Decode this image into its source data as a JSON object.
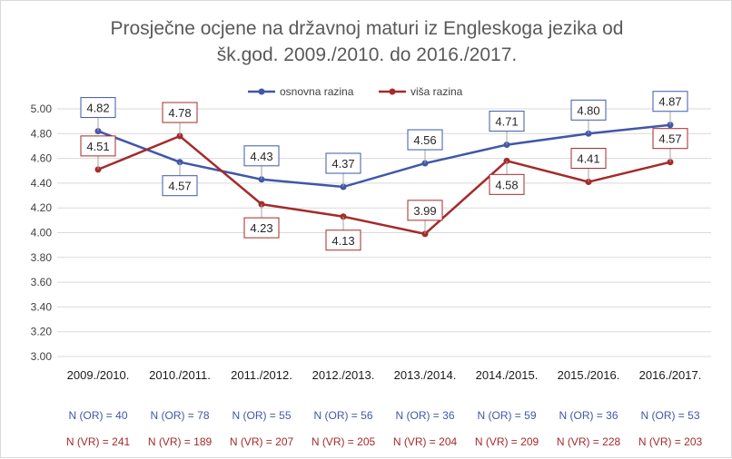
{
  "chart_data": {
    "type": "line",
    "title": "Prosječne ocjene na državnoj maturi iz Engleskoga jezika od šk.god. 2009./2010. do 2016./2017.",
    "title_lines": [
      "Prosječne ocjene na državnoj maturi iz Engleskoga jezika od",
      "šk.god. 2009./2010. do 2016./2017."
    ],
    "categories": [
      "2009./2010.",
      "2010./2011.",
      "2011./2012.",
      "2012./2013.",
      "2013./2014.",
      "2014./2015.",
      "2015./2016.",
      "2016./2017."
    ],
    "ylim": [
      3.0,
      5.0
    ],
    "yticks": [
      "3.00",
      "3.20",
      "3.40",
      "3.60",
      "3.80",
      "4.00",
      "4.20",
      "4.40",
      "4.60",
      "4.80",
      "5.00"
    ],
    "grid": true,
    "legend_position": "top",
    "series": [
      {
        "name": "osnovna razina",
        "color": "#4157a8",
        "values": [
          4.82,
          4.57,
          4.43,
          4.37,
          4.56,
          4.71,
          4.8,
          4.87
        ],
        "labels": [
          "4.82",
          "4.57",
          "4.43",
          "4.37",
          "4.56",
          "4.71",
          "4.80",
          "4.87"
        ],
        "label_side": [
          "above",
          "below",
          "above",
          "above",
          "above",
          "above",
          "above",
          "above"
        ],
        "counts": [
          "N (OR) = 40",
          "N (OR) = 78",
          "N (OR) = 55",
          "N (OR) = 56",
          "N (OR) = 36",
          "N (OR) = 59",
          "N (OR) = 36",
          "N (OR) = 53"
        ]
      },
      {
        "name": "viša razina",
        "color": "#a52a2a",
        "values": [
          4.51,
          4.78,
          4.23,
          4.13,
          3.99,
          4.58,
          4.41,
          4.57
        ],
        "labels": [
          "4.51",
          "4.78",
          "4.23",
          "4.13",
          "3.99",
          "4.58",
          "4.41",
          "4.57"
        ],
        "label_side": [
          "above",
          "above",
          "below",
          "below",
          "above",
          "below",
          "above",
          "above"
        ],
        "counts": [
          "N (VR) = 241",
          "N (VR) = 189",
          "N (VR) = 207",
          "N (VR) = 205",
          "N (VR) = 204",
          "N (VR) = 209",
          "N (VR) = 228",
          "N (VR) = 203"
        ]
      }
    ]
  }
}
